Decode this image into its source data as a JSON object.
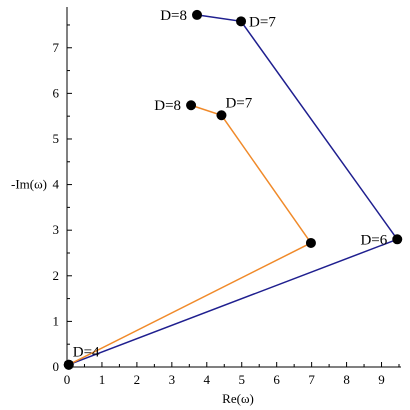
{
  "chart_data": {
    "type": "line",
    "title": "",
    "xlabel": "Re(ω)",
    "ylabel": "-Im(ω)",
    "xlim": [
      0,
      9.5
    ],
    "ylim": [
      0,
      7.85
    ],
    "grid": false,
    "x_ticks": [
      "0",
      "1",
      "2",
      "3",
      "4",
      "5",
      "6",
      "7",
      "8",
      "9"
    ],
    "x_tick_values": [
      0,
      1,
      2,
      3,
      4,
      5,
      6,
      7,
      8,
      9
    ],
    "y_ticks": [
      "0",
      "1",
      "2",
      "3",
      "4",
      "5",
      "6",
      "7"
    ],
    "y_tick_values": [
      0,
      1,
      2,
      3,
      4,
      5,
      6,
      7
    ],
    "series": [
      {
        "color": "#1f1f8f",
        "points": [
          {
            "x": 0.05,
            "y": 0.05
          },
          {
            "x": 9.45,
            "y": 2.8
          },
          {
            "x": 4.98,
            "y": 7.58
          },
          {
            "x": 3.72,
            "y": 7.72
          }
        ]
      },
      {
        "color": "#f08a2a",
        "points": [
          {
            "x": 0.05,
            "y": 0.05
          },
          {
            "x": 6.98,
            "y": 2.72
          },
          {
            "x": 4.42,
            "y": 5.52
          },
          {
            "x": 3.55,
            "y": 5.74
          }
        ]
      }
    ],
    "annotations": [
      {
        "text": "D=4",
        "x": 0.05,
        "y": 0.05,
        "anchor": "above-right"
      },
      {
        "text": "D=6",
        "x": 9.45,
        "y": 2.8,
        "anchor": "left"
      },
      {
        "text": "D=7",
        "x": 4.98,
        "y": 7.58,
        "anchor": "right"
      },
      {
        "text": "D=8",
        "x": 3.72,
        "y": 7.72,
        "anchor": "left"
      },
      {
        "text": "D=7",
        "x": 4.42,
        "y": 5.52,
        "anchor": "above-right"
      },
      {
        "text": "D=8",
        "x": 3.55,
        "y": 5.74,
        "anchor": "left"
      }
    ]
  }
}
